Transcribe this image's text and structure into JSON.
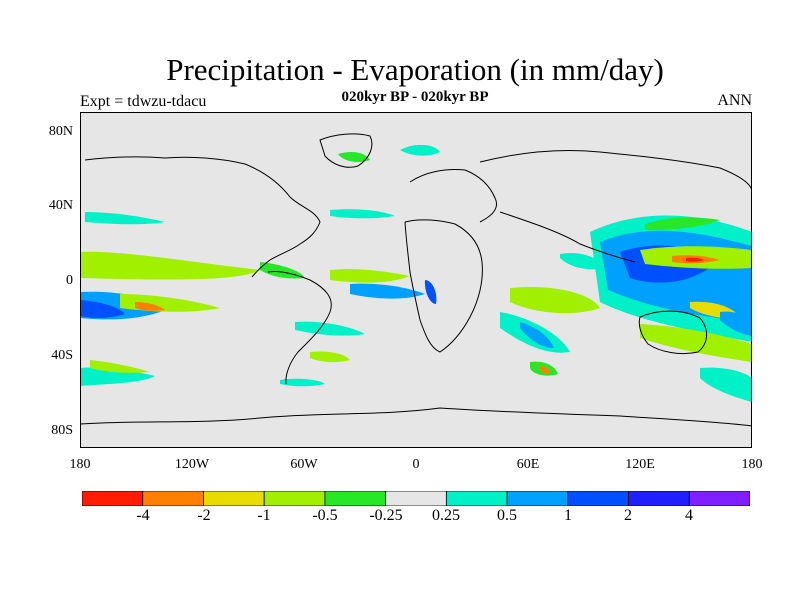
{
  "title": "Precipitation - Evaporation (in mm/day)",
  "subtitle": "020kyr BP - 020kyr BP",
  "expt_label": "Expt = tdwzu-tdacu",
  "season_label": "ANN",
  "map": {
    "lat_labels": [
      "80N",
      "40N",
      "0",
      "40S",
      "80S"
    ],
    "lon_labels": [
      "180",
      "120W",
      "60W",
      "0",
      "60E",
      "120E",
      "180"
    ],
    "background_color": "#e6e6e6"
  },
  "colorbar": {
    "colors": [
      "#ff1c00",
      "#ff8000",
      "#e6dc00",
      "#a0f000",
      "#28e628",
      "#e6e6e6",
      "#00f0c8",
      "#00a0ff",
      "#0050ff",
      "#2020ff",
      "#8020ff"
    ],
    "labels": [
      "-4",
      "-2",
      "-1",
      "-0.5",
      "-0.25",
      "0.25",
      "0.5",
      "1",
      "2",
      "4"
    ]
  }
}
